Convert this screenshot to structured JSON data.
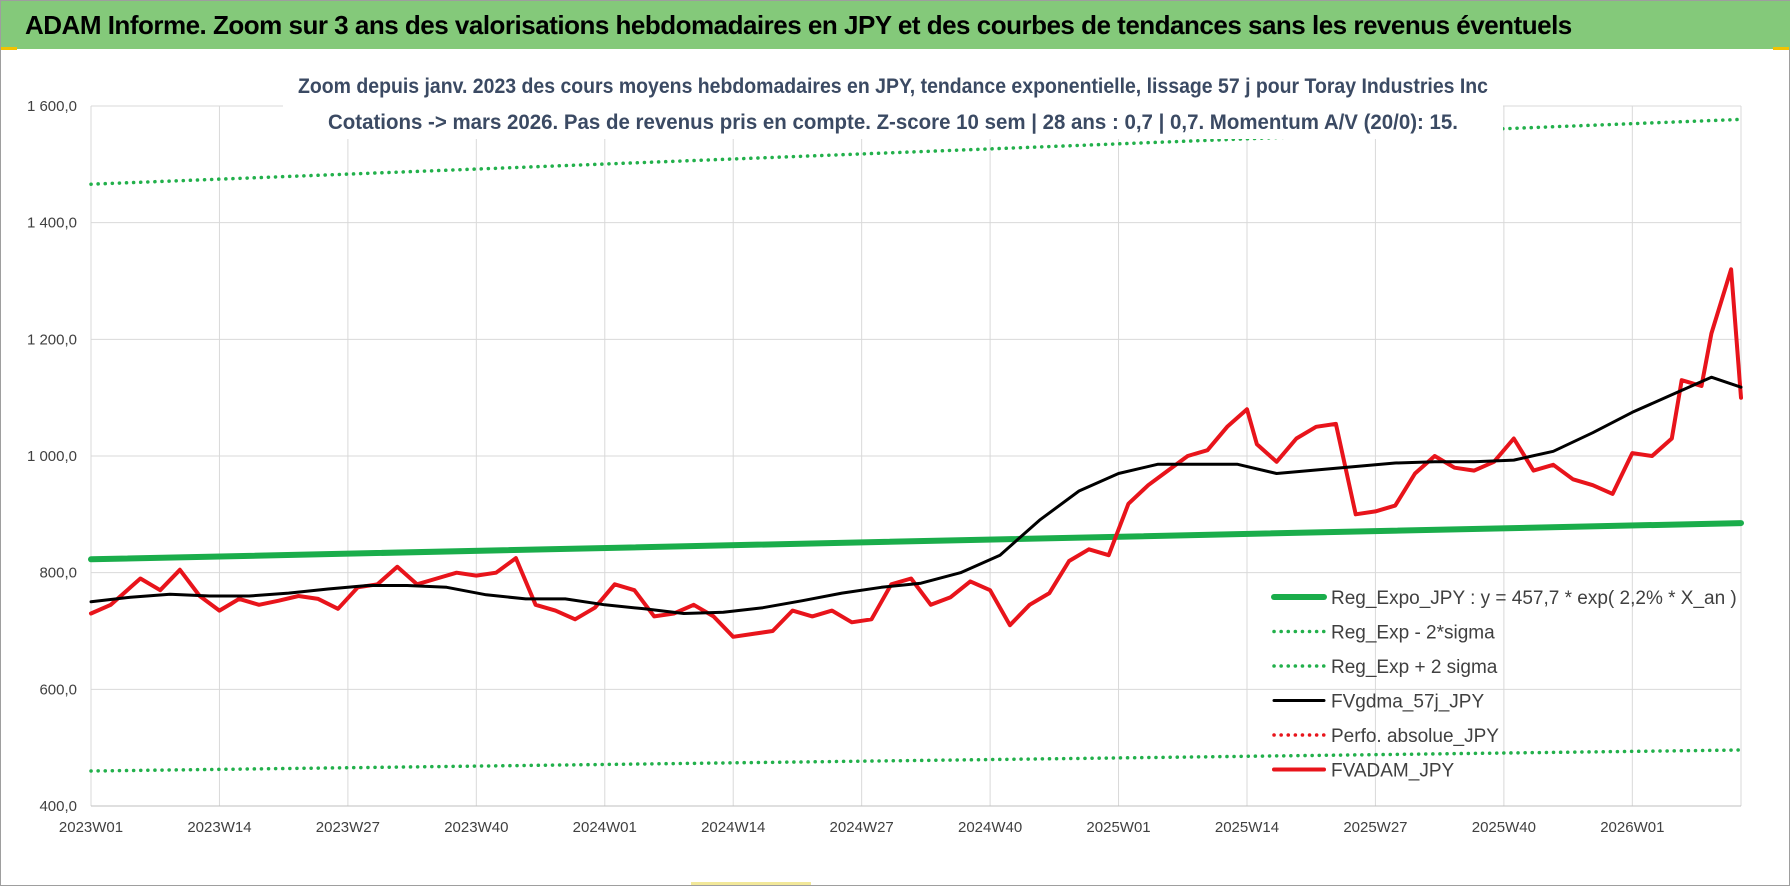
{
  "banner": {
    "title": "ADAM Informe. Zoom sur 3 ans des valorisations hebdomadaires en JPY et des courbes de tendances sans les revenus éventuels"
  },
  "colors": {
    "banner_bg": "#84c97a",
    "trend_green": "#1aad4b",
    "band_green": "#22b04b",
    "gdma_black": "#000000",
    "adam_red": "#e8141b",
    "perfo_red": "#e8141b",
    "title_text": "#3b4a63"
  },
  "chart_data": {
    "type": "line",
    "title_line1": "Zoom depuis janv. 2023 des cours moyens hebdomadaires en JPY, tendance exponentielle, lissage 57 j pour Toray Industries Inc",
    "title_line2": "Cotations -> mars 2026. Pas de revenus pris en compte. Z-score 10 sem | 28 ans : 0,7 | 0,7. Momentum A/V (20/0): 15.",
    "ylim": [
      400,
      1600
    ],
    "yticks": [
      400,
      600,
      800,
      1000,
      1200,
      1400,
      1600
    ],
    "ytick_labels": [
      "400,0",
      "600,0",
      "800,0",
      "1 000,0",
      "1 200,0",
      "1 400,0",
      "1 600,0"
    ],
    "x_count": 168,
    "xtick_labels": [
      "2023W01",
      "2023W14",
      "2023W27",
      "2023W40",
      "2024W01",
      "2024W14",
      "2024W27",
      "2024W40",
      "2025W01",
      "2025W14",
      "2025W27",
      "2025W40",
      "2026W01"
    ],
    "xtick_indices": [
      0,
      13,
      26,
      39,
      52,
      65,
      78,
      91,
      104,
      117,
      130,
      143,
      156
    ],
    "grid": true,
    "legend_position": "bottom-right",
    "series": [
      {
        "name": "Reg_Expo_JPY : y = 457,7 * exp( 2,2% *  X_an )",
        "style": "solid-thick",
        "color": "#1aad4b",
        "x": [
          0,
          167
        ],
        "values": [
          823,
          885
        ]
      },
      {
        "name": "Reg_Exp - 2*sigma",
        "style": "dotted",
        "color": "#22b04b",
        "x": [
          0,
          167
        ],
        "values": [
          460,
          496
        ]
      },
      {
        "name": "Reg_Exp + 2 sigma",
        "style": "dotted",
        "color": "#22b04b",
        "x": [
          0,
          167
        ],
        "values": [
          1466,
          1577
        ]
      },
      {
        "name": "FVgdma_57j_JPY",
        "style": "solid",
        "color": "#000000",
        "x": [
          0,
          4,
          8,
          12,
          16,
          20,
          24,
          28,
          32,
          36,
          40,
          44,
          48,
          52,
          56,
          60,
          64,
          68,
          72,
          76,
          80,
          84,
          88,
          92,
          96,
          100,
          104,
          108,
          112,
          116,
          120,
          124,
          128,
          132,
          136,
          140,
          144,
          148,
          152,
          156,
          160,
          164,
          167
        ],
        "values": [
          750,
          758,
          763,
          760,
          760,
          765,
          772,
          778,
          778,
          775,
          762,
          755,
          755,
          745,
          738,
          730,
          732,
          740,
          752,
          765,
          775,
          782,
          800,
          830,
          890,
          940,
          970,
          986,
          986,
          986,
          970,
          976,
          982,
          988,
          990,
          990,
          993,
          1008,
          1040,
          1075,
          1105,
          1135,
          1118
        ]
      },
      {
        "name": "Perfo. absolue_JPY",
        "style": "dotted",
        "color": "#e8141b",
        "x": [],
        "values": []
      },
      {
        "name": "FVADAM_JPY",
        "style": "solid-thick",
        "color": "#e8141b",
        "x": [
          0,
          2,
          4,
          5,
          7,
          9,
          11,
          13,
          15,
          17,
          19,
          21,
          23,
          25,
          27,
          29,
          31,
          33,
          35,
          37,
          39,
          41,
          43,
          45,
          47,
          49,
          51,
          53,
          55,
          57,
          59,
          61,
          63,
          65,
          67,
          69,
          71,
          73,
          75,
          77,
          79,
          81,
          83,
          85,
          87,
          89,
          91,
          93,
          95,
          97,
          99,
          101,
          103,
          105,
          107,
          109,
          111,
          113,
          115,
          117,
          118,
          120,
          122,
          124,
          126,
          128,
          130,
          132,
          134,
          136,
          138,
          140,
          142,
          144,
          146,
          148,
          150,
          152,
          154,
          156,
          158,
          160,
          161,
          163,
          164,
          166,
          167
        ],
        "values": [
          730,
          745,
          775,
          790,
          770,
          805,
          760,
          735,
          755,
          745,
          752,
          760,
          755,
          738,
          775,
          780,
          810,
          780,
          790,
          800,
          795,
          800,
          825,
          745,
          735,
          720,
          740,
          780,
          770,
          725,
          730,
          745,
          725,
          690,
          695,
          700,
          735,
          725,
          735,
          715,
          720,
          780,
          790,
          745,
          758,
          785,
          770,
          710,
          745,
          765,
          820,
          840,
          830,
          918,
          950,
          975,
          1000,
          1010,
          1050,
          1080,
          1020,
          990,
          1030,
          1050,
          1055,
          900,
          905,
          915,
          970,
          1000,
          980,
          975,
          990,
          1030,
          975,
          985,
          960,
          950,
          935,
          1005,
          1000,
          1030,
          1130,
          1120,
          1210,
          1320,
          1100
        ]
      }
    ]
  }
}
